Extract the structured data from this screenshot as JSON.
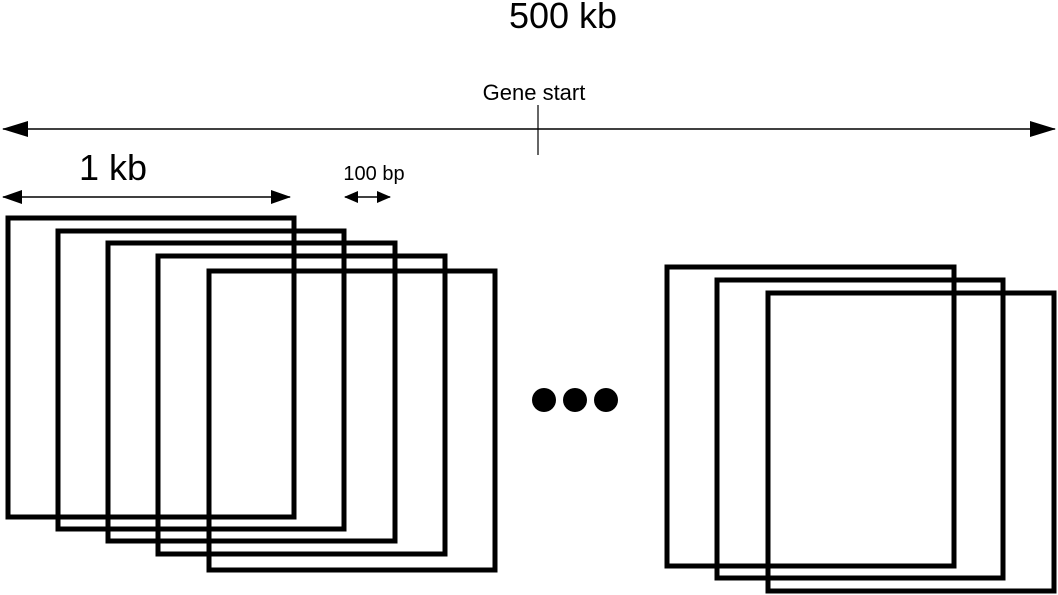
{
  "labels": {
    "total_span": "500 kb",
    "gene_start": "Gene start",
    "window_size": "1 kb",
    "step_size": "100 bp"
  },
  "colors": {
    "stroke": "#000000",
    "background": "#ffffff"
  },
  "icons": {
    "ellipsis": "ellipsis-dots-icon"
  }
}
